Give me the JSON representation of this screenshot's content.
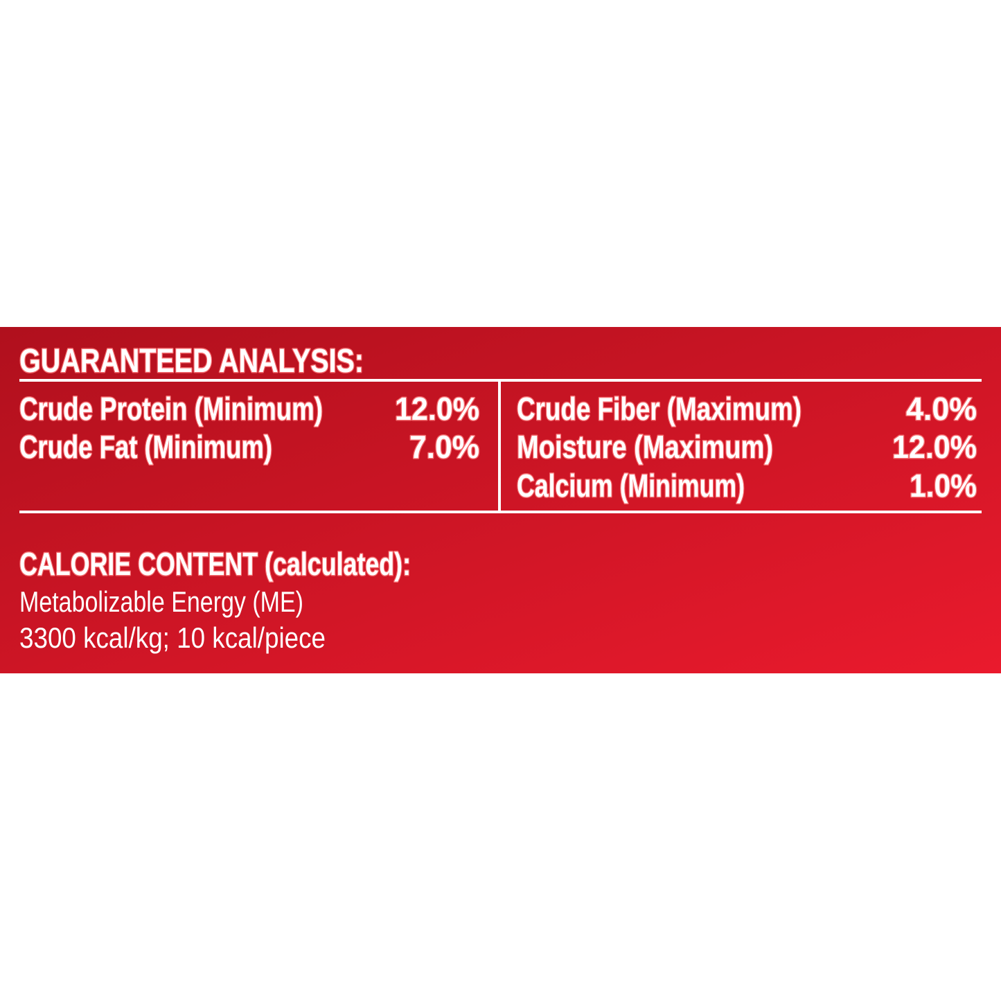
{
  "panel": {
    "title": "GUARANTEED ANALYSIS:",
    "left_rows": [
      {
        "label": "Crude Protein (Minimum)",
        "value": "12.0%"
      },
      {
        "label": "Crude Fat (Minimum)",
        "value": "7.0%"
      }
    ],
    "right_rows": [
      {
        "label": "Crude Fiber (Maximum)",
        "value": "4.0%"
      },
      {
        "label": "Moisture (Maximum)",
        "value": "12.0%"
      },
      {
        "label": "Calcium (Minimum)",
        "value": "1.0%"
      }
    ],
    "calorie_heading": "CALORIE CONTENT (calculated):",
    "calorie_lines": [
      "Metabolizable Energy (ME)",
      "3300 kcal/kg; 10 kcal/piece"
    ]
  }
}
